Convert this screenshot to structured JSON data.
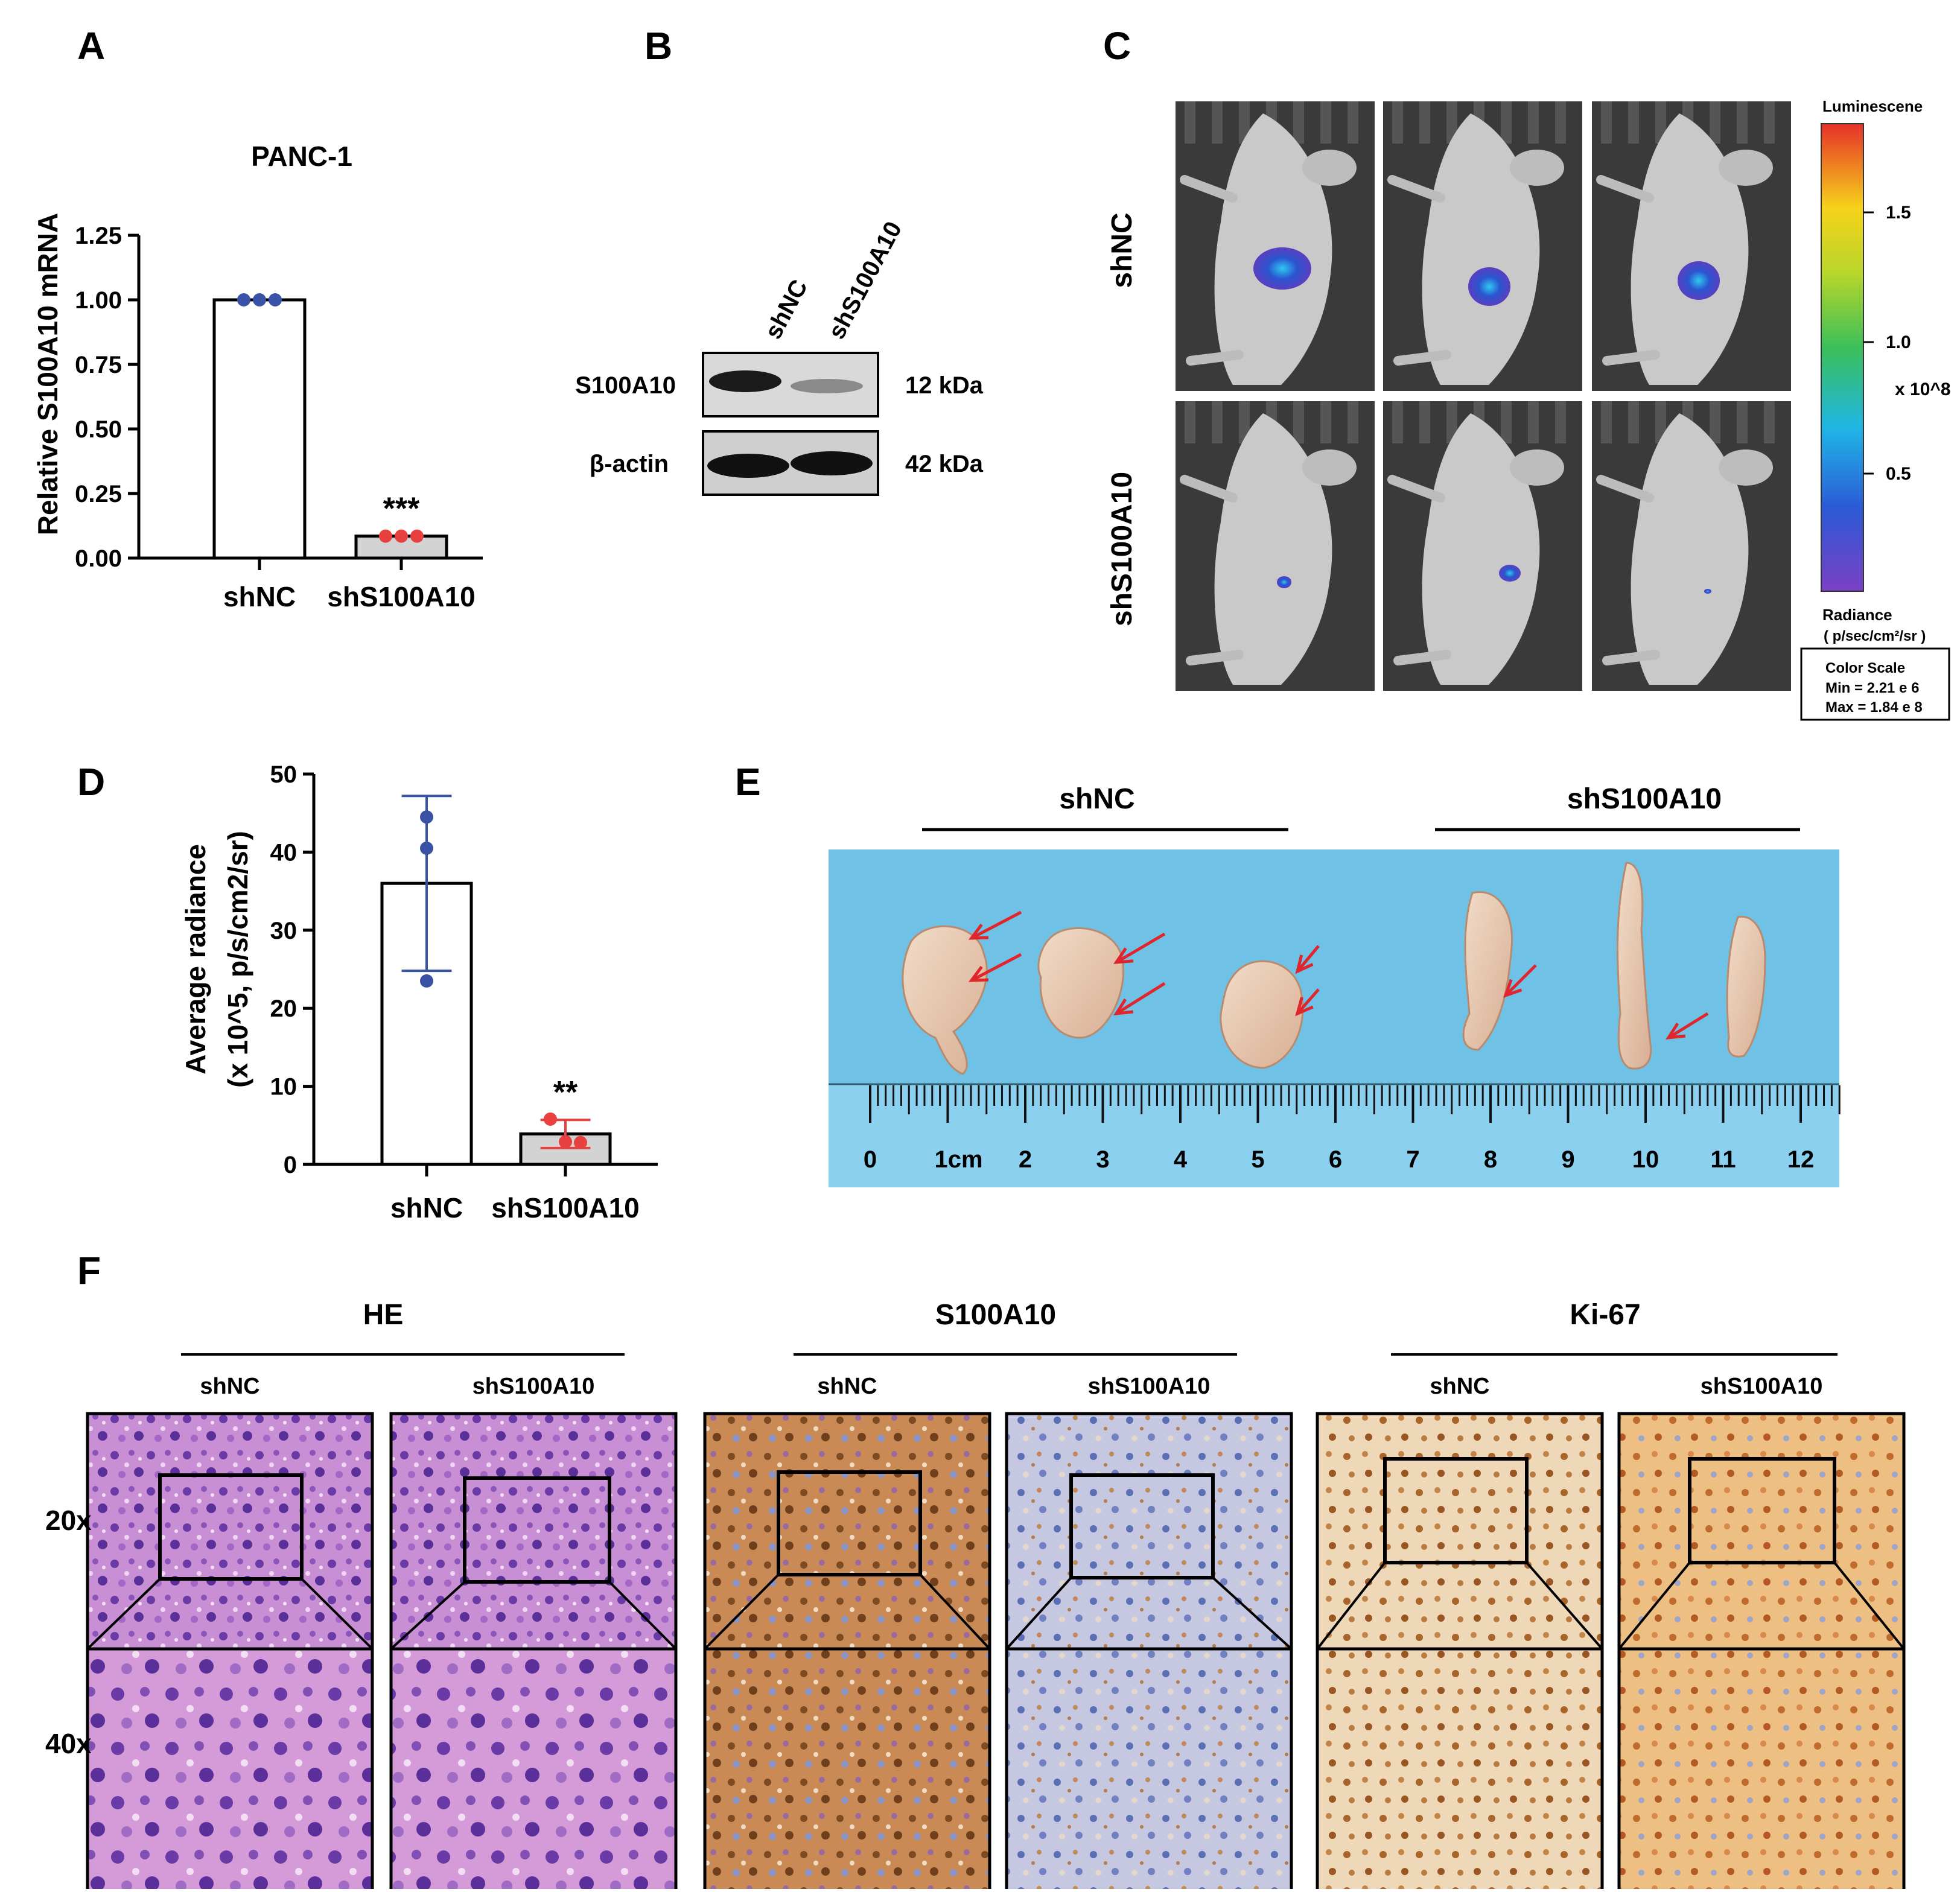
{
  "panels": {
    "A": {
      "letter": "A"
    },
    "B": {
      "letter": "B"
    },
    "C": {
      "letter": "C"
    },
    "D": {
      "letter": "D"
    },
    "E": {
      "letter": "E"
    },
    "F": {
      "letter": "F"
    }
  },
  "chart_data": [
    {
      "panel": "A",
      "type": "bar",
      "title": "PANC-1",
      "ylabel": "Relative S100A10 mRNA",
      "xlabel": "",
      "categories": [
        "shNC",
        "shS100A10"
      ],
      "values": [
        1.0,
        0.085
      ],
      "points": [
        [
          1.0,
          1.0,
          1.0
        ],
        [
          0.085,
          0.085,
          0.085
        ]
      ],
      "ylim": [
        0,
        1.25
      ],
      "yticks": [
        "0.00",
        "0.25",
        "0.50",
        "0.75",
        "1.00",
        "1.25"
      ],
      "significance": [
        "",
        "***"
      ],
      "colors": {
        "bar1": "#ffffff",
        "bar2": "#d3d3d3",
        "dots1": "#3a52a6",
        "dots2": "#e8403f"
      }
    },
    {
      "panel": "D",
      "type": "bar",
      "title": "",
      "ylabel_line1": "Average radiance",
      "ylabel_line2": "(x 10^5, p/s/cm2/sr)",
      "xlabel": "",
      "categories": [
        "shNC",
        "shS100A10"
      ],
      "values": [
        36.0,
        3.9
      ],
      "errors": [
        11.2,
        1.8
      ],
      "points": [
        [
          44.5,
          40.5,
          23.5
        ],
        [
          5.8,
          2.8,
          2.9
        ]
      ],
      "ylim": [
        0,
        50
      ],
      "yticks": [
        "0",
        "10",
        "20",
        "30",
        "40",
        "50"
      ],
      "significance": [
        "",
        "**"
      ],
      "colors": {
        "bar1": "#ffffff",
        "bar2": "#d3d3d3",
        "dots1": "#3a52a6",
        "dots2": "#e8403f"
      }
    }
  ],
  "blot": {
    "lanes": [
      "shNC",
      "shS100A10"
    ],
    "rows": [
      {
        "protein": "S100A10",
        "size": "12 kDa"
      },
      {
        "protein": "β-actin",
        "size": "42 kDa"
      }
    ]
  },
  "imaging": {
    "rows": [
      "shNC",
      "shS100A10"
    ],
    "colorbar": {
      "title": "Luminescene",
      "ticks": [
        "1.5",
        "1.0",
        "0.5"
      ],
      "multiplier": "x 10^8",
      "unit_line1": "Radiance",
      "unit_line2": "( p/sec/cm²/sr )",
      "scale_title": "Color Scale",
      "scale_min": "Min = 2.21 e 6",
      "scale_max": "Max = 1.84 e 8"
    }
  },
  "tumors": {
    "groups": [
      "shNC",
      "shS100A10"
    ],
    "ruler_labels": [
      "0",
      "1cm",
      "2",
      "3",
      "4",
      "5",
      "6",
      "7",
      "8",
      "9",
      "10",
      "11",
      "12"
    ],
    "colors": {
      "background": "#6fc2e6",
      "arrow": "#e0262c",
      "tumor": "#e8cdb6"
    }
  },
  "histology": {
    "stains": [
      "HE",
      "S100A10",
      "Ki-67"
    ],
    "groups": [
      "shNC",
      "shS100A10"
    ],
    "magnifications": [
      "20x",
      "40x"
    ],
    "colors": {
      "he": "#b35fc2",
      "ihc_brown": "#b8702f",
      "ihc_blue": "#8091c6",
      "ki_tan": "#e2b884",
      "scalebar": "#e8232a"
    }
  }
}
